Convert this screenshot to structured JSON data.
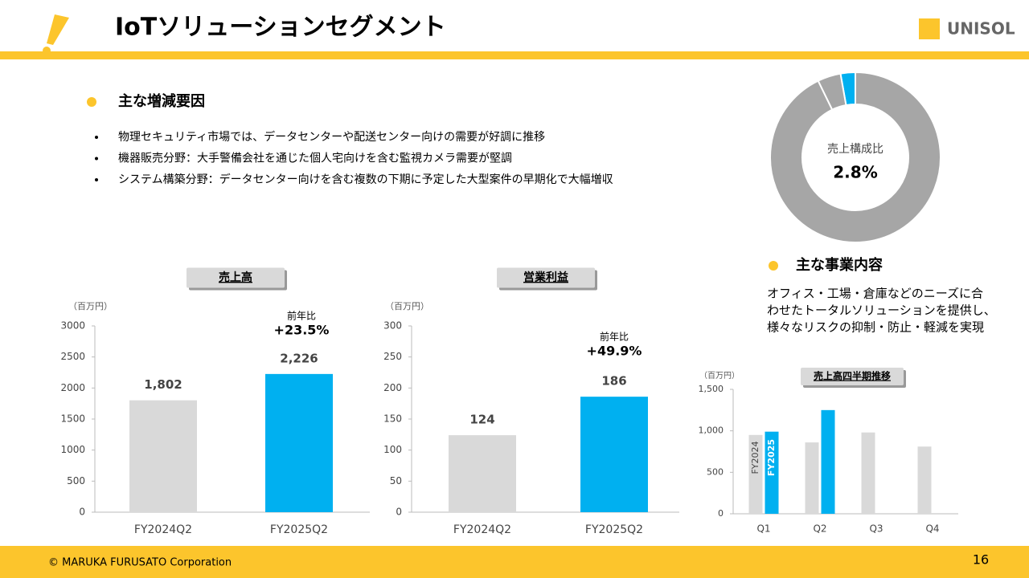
{
  "header": {
    "title": "IoTソリューションセグメント",
    "logo": "UNISOL"
  },
  "factors": {
    "heading": "主な増減要因",
    "items": [
      "物理セキュリティ市場では、データセンターや配送センター向けの需要が好調に推移",
      "機器販売分野：大手警備会社を通じた個人宅向けを含む監視カメラ需要が堅調",
      "システム構築分野：データセンター向けを含む複数の下期に予定した大型案件の早期化で大幅増収"
    ]
  },
  "business": {
    "heading": "主な事業内容",
    "lines": [
      "オフィス・工場・倉庫などのニーズに合",
      "わせたトータルソリューションを提供し、",
      "様々なリスクの抑制・防止・軽減を実現"
    ]
  },
  "footer": {
    "copyright": "© MARUKA FURUSATO Corporation",
    "page": "16"
  },
  "chart_data": [
    {
      "type": "bar",
      "title": "売上高",
      "unit": "（百万円）",
      "categories": [
        "FY2024Q2",
        "FY2025Q2"
      ],
      "values": [
        1802,
        2226
      ],
      "value_labels": [
        "1,802",
        "2,226"
      ],
      "colors": [
        "#d9d9d9",
        "#00b0f0"
      ],
      "ylim": [
        0,
        3000
      ],
      "yticks": [
        0,
        500,
        1000,
        1500,
        2000,
        2500,
        3000
      ],
      "annotations": [
        "前年比",
        "+23.5%"
      ]
    },
    {
      "type": "bar",
      "title": "営業利益",
      "unit": "（百万円）",
      "categories": [
        "FY2024Q2",
        "FY2025Q2"
      ],
      "values": [
        124,
        186
      ],
      "colors": [
        "#d9d9d9",
        "#00b0f0"
      ],
      "ylim": [
        0,
        300
      ],
      "yticks": [
        0,
        50,
        100,
        150,
        200,
        250,
        300
      ],
      "annotations": [
        "前年比",
        "+49.9%"
      ]
    },
    {
      "type": "pie",
      "title": "売上構成比",
      "highlight_label": "2.8%",
      "values": [
        2.8,
        4.4,
        92.8
      ],
      "colors": [
        "#00b0f0",
        "#a6a6a6",
        "#a6a6a6"
      ]
    },
    {
      "type": "grouped-bar",
      "title": "売上高四半期推移",
      "unit": "（百万円）",
      "categories": [
        "Q1",
        "Q2",
        "Q3",
        "Q4"
      ],
      "series": [
        {
          "name": "FY2024",
          "color": "#d9d9d9",
          "values": [
            950,
            860,
            980,
            810
          ]
        },
        {
          "name": "FY2025",
          "color": "#00b0f0",
          "values": [
            990,
            1250,
            null,
            null
          ]
        }
      ],
      "ylim": [
        0,
        1500
      ],
      "yticks": [
        0,
        500,
        {
          "value": 1000,
          "label": "1,000"
        },
        {
          "value": 1500,
          "label": "1,500"
        }
      ]
    }
  ]
}
